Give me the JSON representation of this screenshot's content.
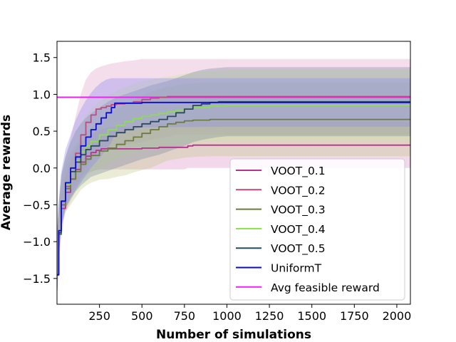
{
  "chart_data": {
    "type": "line",
    "title": "",
    "xlabel": "Number of simulations",
    "ylabel": "Average rewards",
    "xlim": [
      0,
      2080
    ],
    "ylim": [
      -1.85,
      1.72
    ],
    "xticks": [
      250,
      500,
      750,
      1000,
      1250,
      1500,
      1750,
      2000
    ],
    "xtick_labels": [
      "250",
      "500",
      "750",
      "1000",
      "1250",
      "1500",
      "1750",
      "2000"
    ],
    "yticks": [
      1.5,
      1.0,
      0.5,
      0.0,
      -0.5,
      -1.0,
      -1.5
    ],
    "ytick_labels": [
      "1.5",
      "1.0",
      "0.5",
      "0.0",
      "−0.5",
      "−1.0",
      "−1.5"
    ],
    "grid": false,
    "legend_position": "lower-right",
    "series": [
      {
        "name": "VOOT_0.1",
        "color": "#b5338a",
        "band_color": "#d98fc2",
        "x": [
          0,
          10,
          25,
          50,
          80,
          110,
          140,
          170,
          200,
          230,
          260,
          300,
          350,
          400,
          450,
          500,
          600,
          700,
          750,
          770,
          800,
          1000,
          1500,
          2080
        ],
        "y": [
          -1.45,
          -0.9,
          -0.55,
          -0.33,
          -0.15,
          -0.02,
          0.08,
          0.16,
          0.21,
          0.24,
          0.26,
          0.26,
          0.26,
          0.26,
          0.26,
          0.27,
          0.28,
          0.28,
          0.28,
          0.3,
          0.31,
          0.31,
          0.31,
          0.31
        ],
        "upper": [
          -1.0,
          -0.6,
          -0.3,
          -0.1,
          0.1,
          0.25,
          0.35,
          0.4,
          0.45,
          0.5,
          0.52,
          0.55,
          0.56,
          0.56,
          0.57,
          0.58,
          0.6,
          0.6,
          0.6,
          0.62,
          0.63,
          0.63,
          0.63,
          0.63
        ],
        "lower": [
          -1.8,
          -1.2,
          -0.8,
          -0.55,
          -0.35,
          -0.25,
          -0.15,
          -0.08,
          -0.05,
          -0.03,
          -0.02,
          -0.02,
          -0.02,
          -0.02,
          -0.02,
          -0.02,
          -0.02,
          -0.02,
          -0.02,
          0.0,
          0.0,
          0.0,
          0.0,
          0.0
        ]
      },
      {
        "name": "VOOT_0.2",
        "color": "#c04a7e",
        "band_color": "#e0a0c8",
        "x": [
          0,
          10,
          25,
          50,
          80,
          110,
          140,
          170,
          200,
          230,
          260,
          290,
          320,
          350,
          400,
          450,
          500,
          550,
          600,
          650,
          700,
          800,
          1000,
          1500,
          2080
        ],
        "y": [
          -1.45,
          -0.9,
          -0.5,
          -0.25,
          -0.05,
          0.2,
          0.45,
          0.62,
          0.72,
          0.8,
          0.82,
          0.84,
          0.86,
          0.87,
          0.88,
          0.9,
          0.93,
          0.95,
          0.96,
          0.97,
          0.97,
          0.97,
          0.97,
          0.97,
          0.97
        ],
        "upper": [
          -0.9,
          -0.5,
          -0.1,
          0.15,
          0.4,
          0.7,
          1.0,
          1.2,
          1.3,
          1.35,
          1.38,
          1.4,
          1.42,
          1.43,
          1.45,
          1.46,
          1.48,
          1.48,
          1.48,
          1.48,
          1.48,
          1.48,
          1.48,
          1.48,
          1.48
        ],
        "lower": [
          -1.8,
          -1.3,
          -0.9,
          -0.6,
          -0.45,
          -0.3,
          -0.15,
          0.0,
          0.1,
          0.2,
          0.25,
          0.27,
          0.28,
          0.3,
          0.32,
          0.33,
          0.35,
          0.38,
          0.4,
          0.42,
          0.45,
          0.45,
          0.45,
          0.45,
          0.45
        ]
      },
      {
        "name": "VOOT_0.3",
        "color": "#6b7d3a",
        "band_color": "#c2c88a",
        "x": [
          0,
          10,
          25,
          50,
          80,
          110,
          140,
          170,
          200,
          250,
          300,
          350,
          400,
          450,
          500,
          550,
          600,
          650,
          700,
          750,
          800,
          900,
          1000,
          1500,
          2080
        ],
        "y": [
          -1.45,
          -0.9,
          -0.5,
          -0.28,
          -0.15,
          -0.05,
          0.05,
          0.12,
          0.17,
          0.23,
          0.27,
          0.32,
          0.37,
          0.42,
          0.47,
          0.52,
          0.56,
          0.6,
          0.62,
          0.64,
          0.65,
          0.66,
          0.66,
          0.66,
          0.66
        ],
        "upper": [
          -1.0,
          -0.55,
          -0.2,
          0.05,
          0.2,
          0.3,
          0.4,
          0.48,
          0.55,
          0.65,
          0.72,
          0.8,
          0.86,
          0.92,
          0.98,
          1.03,
          1.07,
          1.1,
          1.12,
          1.14,
          1.15,
          1.16,
          1.16,
          1.16,
          1.16
        ],
        "lower": [
          -1.8,
          -1.25,
          -0.8,
          -0.6,
          -0.5,
          -0.4,
          -0.3,
          -0.24,
          -0.2,
          -0.16,
          -0.15,
          -0.12,
          -0.1,
          -0.06,
          -0.03,
          0.0,
          0.05,
          0.1,
          0.12,
          0.14,
          0.15,
          0.16,
          0.16,
          0.16,
          0.16
        ]
      },
      {
        "name": "VOOT_0.4",
        "color": "#88e04a",
        "band_color": "#c8ec9a",
        "x": [
          0,
          10,
          25,
          50,
          80,
          110,
          140,
          170,
          200,
          250,
          300,
          350,
          400,
          450,
          500,
          550,
          600,
          650,
          700,
          750,
          800,
          900,
          1000,
          1500,
          2080
        ],
        "y": [
          -1.45,
          -0.88,
          -0.45,
          -0.22,
          -0.05,
          0.1,
          0.22,
          0.3,
          0.36,
          0.45,
          0.52,
          0.58,
          0.63,
          0.67,
          0.7,
          0.72,
          0.74,
          0.76,
          0.78,
          0.8,
          0.82,
          0.84,
          0.85,
          0.85,
          0.85
        ],
        "upper": [
          -0.95,
          -0.5,
          -0.1,
          0.15,
          0.35,
          0.5,
          0.62,
          0.72,
          0.8,
          0.9,
          0.98,
          1.05,
          1.1,
          1.14,
          1.18,
          1.2,
          1.22,
          1.24,
          1.26,
          1.28,
          1.3,
          1.32,
          1.33,
          1.33,
          1.33
        ],
        "lower": [
          -1.8,
          -1.2,
          -0.8,
          -0.55,
          -0.42,
          -0.3,
          -0.2,
          -0.12,
          -0.06,
          0.0,
          0.06,
          0.12,
          0.16,
          0.2,
          0.23,
          0.25,
          0.27,
          0.29,
          0.31,
          0.33,
          0.35,
          0.37,
          0.38,
          0.38,
          0.38
        ]
      },
      {
        "name": "VOOT_0.5",
        "color": "#2a4a5e",
        "band_color": "#7a8aa0",
        "x": [
          0,
          10,
          25,
          50,
          80,
          110,
          140,
          170,
          200,
          250,
          300,
          350,
          400,
          450,
          500,
          550,
          600,
          650,
          700,
          750,
          800,
          850,
          900,
          950,
          1000,
          1500,
          2080
        ],
        "y": [
          -1.45,
          -0.88,
          -0.45,
          -0.2,
          -0.05,
          0.08,
          0.18,
          0.25,
          0.3,
          0.37,
          0.43,
          0.48,
          0.52,
          0.56,
          0.6,
          0.63,
          0.66,
          0.7,
          0.75,
          0.8,
          0.85,
          0.87,
          0.89,
          0.9,
          0.9,
          0.9,
          0.9
        ],
        "upper": [
          -0.95,
          -0.5,
          -0.1,
          0.15,
          0.35,
          0.5,
          0.6,
          0.68,
          0.74,
          0.82,
          0.9,
          0.96,
          1.0,
          1.04,
          1.08,
          1.12,
          1.15,
          1.18,
          1.22,
          1.26,
          1.3,
          1.33,
          1.35,
          1.36,
          1.37,
          1.37,
          1.37
        ],
        "lower": [
          -1.8,
          -1.2,
          -0.8,
          -0.55,
          -0.42,
          -0.32,
          -0.24,
          -0.18,
          -0.12,
          -0.08,
          -0.04,
          0.0,
          0.04,
          0.08,
          0.12,
          0.15,
          0.18,
          0.22,
          0.26,
          0.3,
          0.35,
          0.38,
          0.4,
          0.42,
          0.43,
          0.43,
          0.43
        ]
      },
      {
        "name": "UniformT",
        "color": "#0a0ad8",
        "band_color": "#8c86f0",
        "x": [
          0,
          10,
          25,
          50,
          80,
          110,
          140,
          170,
          200,
          230,
          260,
          290,
          320,
          340,
          400,
          500,
          1000,
          1500,
          2080
        ],
        "y": [
          -1.45,
          -0.85,
          -0.45,
          -0.2,
          0.0,
          0.15,
          0.3,
          0.42,
          0.52,
          0.6,
          0.68,
          0.75,
          0.82,
          0.88,
          0.88,
          0.89,
          0.89,
          0.89,
          0.89
        ],
        "upper": [
          -0.9,
          -0.45,
          -0.05,
          0.25,
          0.45,
          0.65,
          0.8,
          0.92,
          1.02,
          1.1,
          1.16,
          1.2,
          1.22,
          1.22,
          1.22,
          1.22,
          1.22,
          1.22,
          1.22
        ],
        "lower": [
          -1.8,
          -1.2,
          -0.8,
          -0.55,
          -0.4,
          -0.3,
          -0.2,
          -0.1,
          0.0,
          0.08,
          0.16,
          0.25,
          0.35,
          0.45,
          0.5,
          0.55,
          0.56,
          0.56,
          0.56
        ]
      }
    ],
    "reference_line": {
      "name": "Avg feasible reward",
      "color": "#ee22ee",
      "y": 0.96
    }
  }
}
